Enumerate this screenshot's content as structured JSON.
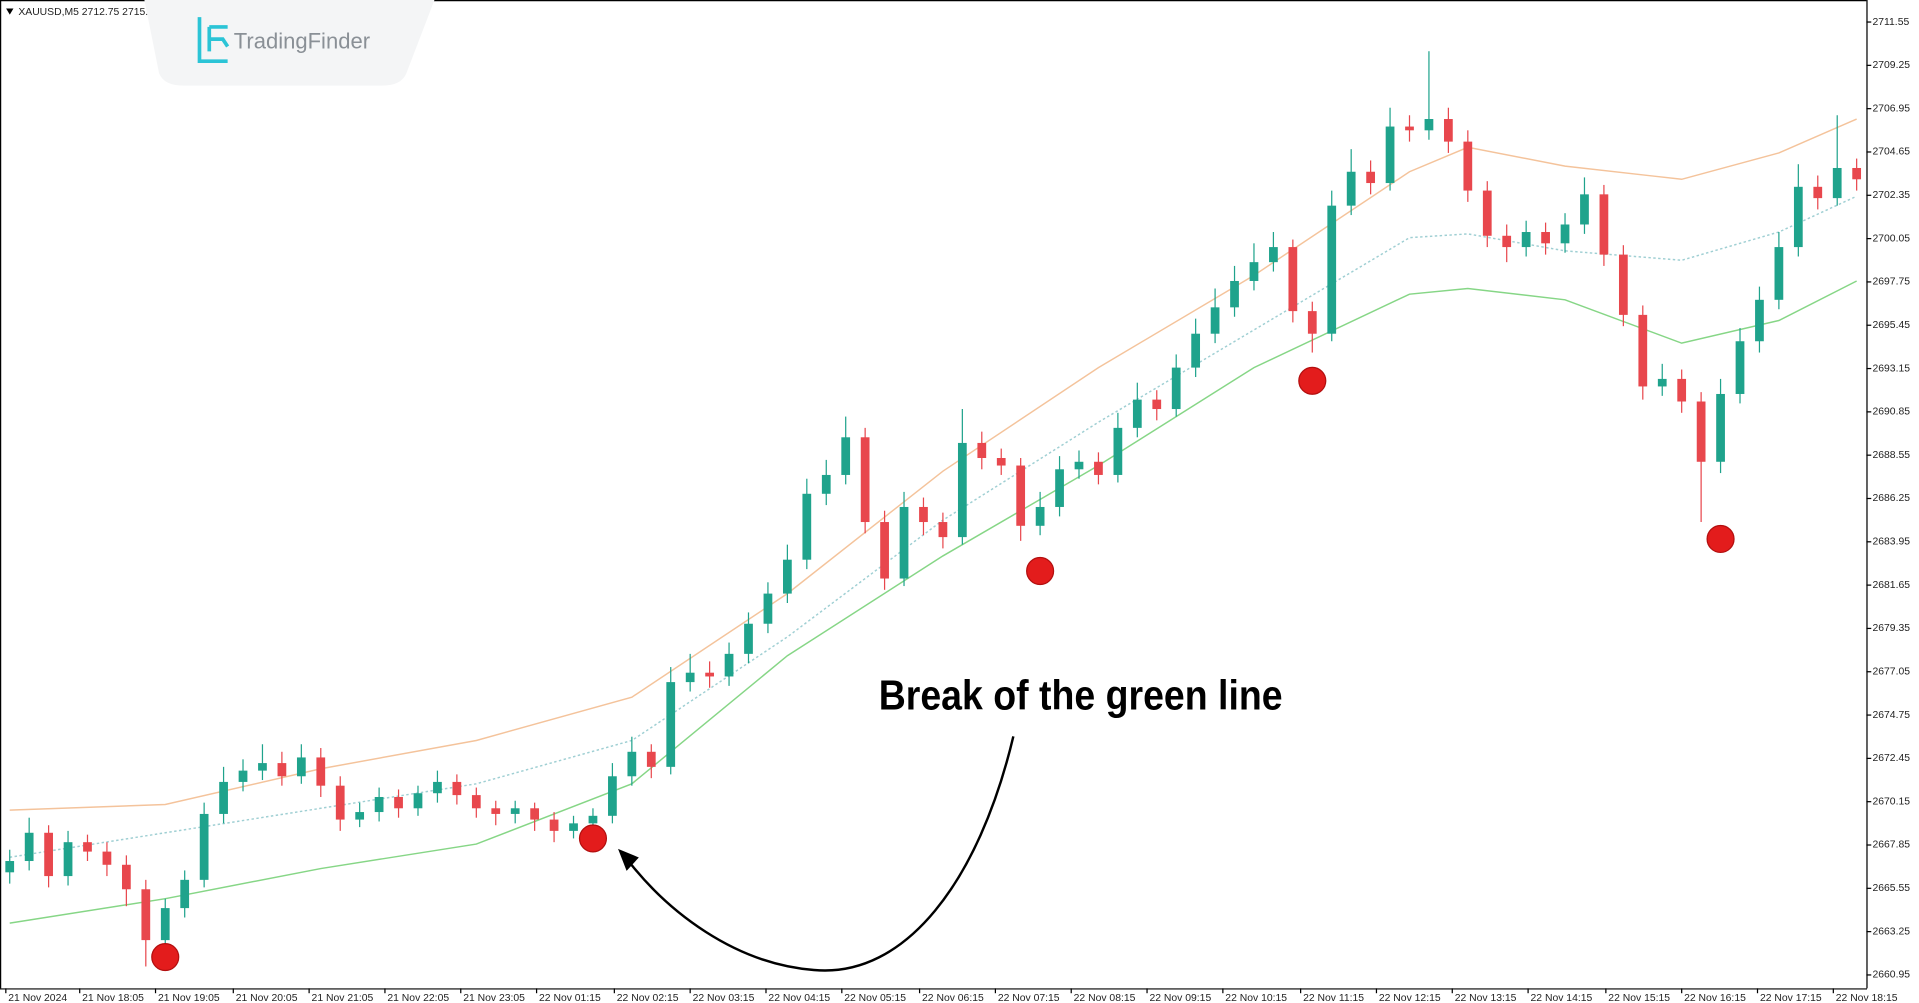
{
  "header": {
    "symbol_quote": "XAUUSD,M5  2712.75  2715."
  },
  "logo": "TradingFinder",
  "chart_data": {
    "type": "candlestick",
    "annotation": "Break of the green line",
    "up_color": "#1fa38c",
    "down_color": "#e8474d",
    "open": [
      2666.4,
      2667.0,
      2668.5,
      2666.2,
      2668.0,
      2667.5,
      2666.8,
      2665.5,
      2662.8,
      2664.5,
      2666.0,
      2669.5,
      2671.2,
      2671.8,
      2672.2,
      2671.5,
      2672.5,
      2671.0,
      2669.2,
      2669.6,
      2670.4,
      2669.8,
      2670.6,
      2671.2,
      2670.5,
      2669.8,
      2669.5,
      2669.8,
      2669.2,
      2668.6,
      2669.0,
      2669.4,
      2671.5,
      2672.8,
      2672.0,
      2676.5,
      2677.0,
      2676.8,
      2678.0,
      2679.6,
      2681.2,
      2683.0,
      2686.5,
      2687.5,
      2689.5,
      2685.0,
      2682.0,
      2685.8,
      2685.0,
      2684.2,
      2689.2,
      2688.4,
      2688.0,
      2684.8,
      2685.8,
      2687.8,
      2688.2,
      2687.5,
      2690.0,
      2691.5,
      2691.0,
      2693.2,
      2695.0,
      2696.4,
      2697.8,
      2698.8,
      2699.6,
      2696.2,
      2695.0,
      2701.8,
      2703.6,
      2703.0,
      2706.0,
      2705.8,
      2706.4,
      2705.2,
      2702.6,
      2700.2,
      2699.6,
      2700.4,
      2699.8,
      2700.8,
      2702.4,
      2699.2,
      2696.0,
      2692.2,
      2692.6,
      2691.4,
      2688.2,
      2691.8,
      2694.6,
      2696.8,
      2699.6,
      2702.8,
      2702.2,
      2703.8
    ],
    "high": [
      2667.6,
      2669.3,
      2668.9,
      2668.6,
      2668.4,
      2668.0,
      2667.3,
      2666.0,
      2665.0,
      2666.5,
      2670.1,
      2672.0,
      2672.4,
      2673.2,
      2672.8,
      2673.2,
      2673.0,
      2671.5,
      2670.1,
      2670.9,
      2670.8,
      2671.0,
      2671.8,
      2671.6,
      2670.9,
      2670.2,
      2670.2,
      2670.1,
      2669.6,
      2669.4,
      2669.8,
      2672.2,
      2673.6,
      2673.2,
      2677.3,
      2678.0,
      2677.6,
      2678.6,
      2680.2,
      2681.8,
      2683.8,
      2687.3,
      2688.3,
      2690.6,
      2690.0,
      2685.6,
      2686.6,
      2686.3,
      2685.5,
      2691.0,
      2689.8,
      2688.9,
      2688.4,
      2686.6,
      2688.5,
      2688.8,
      2688.7,
      2690.8,
      2692.4,
      2692.0,
      2693.9,
      2695.8,
      2697.4,
      2698.6,
      2699.8,
      2700.4,
      2700.0,
      2696.7,
      2702.6,
      2704.8,
      2704.2,
      2707.0,
      2706.6,
      2710.0,
      2707.0,
      2705.8,
      2703.1,
      2700.8,
      2701.0,
      2700.9,
      2701.4,
      2703.3,
      2702.9,
      2699.7,
      2696.5,
      2693.4,
      2693.1,
      2691.9,
      2692.6,
      2695.3,
      2697.5,
      2700.4,
      2704.0,
      2703.4,
      2706.6,
      2704.3
    ],
    "low": [
      2665.8,
      2666.5,
      2665.6,
      2665.7,
      2667.0,
      2666.2,
      2664.6,
      2661.4,
      2662.3,
      2664.0,
      2665.6,
      2669.0,
      2670.7,
      2671.3,
      2671.0,
      2671.1,
      2670.4,
      2668.6,
      2668.8,
      2669.1,
      2669.3,
      2669.4,
      2670.1,
      2670.0,
      2669.3,
      2668.9,
      2669.0,
      2668.6,
      2668.0,
      2668.2,
      2668.6,
      2669.0,
      2671.0,
      2671.4,
      2671.6,
      2676.0,
      2676.2,
      2676.3,
      2677.5,
      2679.1,
      2680.7,
      2682.5,
      2685.9,
      2687.0,
      2684.4,
      2681.4,
      2681.6,
      2684.3,
      2683.6,
      2683.8,
      2687.8,
      2687.5,
      2684.0,
      2684.3,
      2685.3,
      2687.3,
      2687.0,
      2687.1,
      2689.5,
      2690.4,
      2690.6,
      2692.7,
      2694.5,
      2695.9,
      2697.3,
      2698.3,
      2695.6,
      2694.0,
      2694.6,
      2701.3,
      2702.4,
      2702.6,
      2705.2,
      2705.3,
      2704.6,
      2702.0,
      2699.6,
      2698.8,
      2699.1,
      2699.2,
      2699.3,
      2700.3,
      2698.6,
      2695.4,
      2691.5,
      2691.7,
      2690.8,
      2685.0,
      2687.6,
      2691.3,
      2694.0,
      2696.3,
      2699.1,
      2701.6,
      2701.8,
      2702.6
    ],
    "close": [
      2667.0,
      2668.5,
      2666.2,
      2668.0,
      2667.5,
      2666.8,
      2665.5,
      2662.8,
      2664.5,
      2666.0,
      2669.5,
      2671.2,
      2671.8,
      2672.2,
      2671.5,
      2672.5,
      2671.0,
      2669.2,
      2669.6,
      2670.4,
      2669.8,
      2670.6,
      2671.2,
      2670.5,
      2669.8,
      2669.5,
      2669.8,
      2669.2,
      2668.6,
      2669.0,
      2669.4,
      2671.5,
      2672.8,
      2672.0,
      2676.5,
      2677.0,
      2676.8,
      2678.0,
      2679.6,
      2681.2,
      2683.0,
      2686.5,
      2687.5,
      2689.5,
      2685.0,
      2682.0,
      2685.8,
      2685.0,
      2684.2,
      2689.2,
      2688.4,
      2688.0,
      2684.8,
      2685.8,
      2687.8,
      2688.2,
      2687.5,
      2690.0,
      2691.5,
      2691.0,
      2693.2,
      2695.0,
      2696.4,
      2697.8,
      2698.8,
      2699.6,
      2696.2,
      2695.0,
      2701.8,
      2703.6,
      2703.0,
      2706.0,
      2705.8,
      2706.4,
      2705.2,
      2702.6,
      2700.2,
      2699.6,
      2700.4,
      2699.8,
      2700.8,
      2702.4,
      2699.2,
      2696.0,
      2692.2,
      2692.6,
      2691.4,
      2688.2,
      2691.8,
      2694.6,
      2696.8,
      2699.6,
      2702.8,
      2702.2,
      2703.8,
      2703.2
    ],
    "xlim": [
      -0.5,
      95.5
    ],
    "xticks": [
      {
        "value": -0.2,
        "label": "21 Nov 2024"
      },
      {
        "value": 3.6,
        "label": "21 Nov 18:05"
      },
      {
        "value": 7.5,
        "label": "21 Nov 19:05"
      },
      {
        "value": 11.5,
        "label": "21 Nov 20:05"
      },
      {
        "value": 15.4,
        "label": "21 Nov 21:05"
      },
      {
        "value": 19.3,
        "label": "21 Nov 22:05"
      },
      {
        "value": 23.2,
        "label": "21 Nov 23:05"
      },
      {
        "value": 27.1,
        "label": "22 Nov 01:15"
      },
      {
        "value": 31.1,
        "label": "22 Nov 02:15"
      },
      {
        "value": 35.0,
        "label": "22 Nov 03:15"
      },
      {
        "value": 38.9,
        "label": "22 Nov 04:15"
      },
      {
        "value": 42.8,
        "label": "22 Nov 05:15"
      },
      {
        "value": 46.8,
        "label": "22 Nov 06:15"
      },
      {
        "value": 50.7,
        "label": "22 Nov 07:15"
      },
      {
        "value": 54.6,
        "label": "22 Nov 08:15"
      },
      {
        "value": 58.5,
        "label": "22 Nov 09:15"
      },
      {
        "value": 62.4,
        "label": "22 Nov 10:15"
      },
      {
        "value": 66.4,
        "label": "22 Nov 11:15"
      },
      {
        "value": 70.3,
        "label": "22 Nov 12:15"
      },
      {
        "value": 74.2,
        "label": "22 Nov 13:15"
      },
      {
        "value": 78.1,
        "label": "22 Nov 14:15"
      },
      {
        "value": 82.1,
        "label": "22 Nov 15:15"
      },
      {
        "value": 86.0,
        "label": "22 Nov 16:15"
      },
      {
        "value": 89.9,
        "label": "22 Nov 17:15"
      },
      {
        "value": 93.8,
        "label": "22 Nov 18:15"
      }
    ],
    "ylim": [
      2660.24,
      2712.72
    ],
    "yticks": [
      2711.55,
      2709.25,
      2706.95,
      2704.65,
      2702.35,
      2700.05,
      2697.75,
      2695.45,
      2693.15,
      2690.85,
      2688.55,
      2686.25,
      2683.95,
      2681.65,
      2679.35,
      2677.05,
      2674.75,
      2672.45,
      2670.15,
      2667.85,
      2665.55,
      2663.25,
      2660.95
    ],
    "bands": [
      {
        "color": "#f4c39b",
        "dash": "none",
        "x": [
          0,
          8,
          16,
          24,
          32,
          40,
          48,
          56,
          64,
          72,
          75,
          80,
          86,
          91,
          95
        ],
        "values": [
          2669.7,
          2670.0,
          2671.9,
          2673.4,
          2675.7,
          2681.2,
          2687.7,
          2693.2,
          2698.1,
          2703.6,
          2704.9,
          2703.9,
          2703.2,
          2704.6,
          2706.4
        ]
      },
      {
        "color": "#9fcfd3",
        "dash": "2 2",
        "x": [
          0,
          8,
          16,
          24,
          32,
          40,
          48,
          56,
          64,
          72,
          75,
          80,
          86,
          91,
          95
        ],
        "values": [
          2667.2,
          2668.5,
          2669.8,
          2671.1,
          2673.4,
          2678.9,
          2685.1,
          2690.3,
          2695.2,
          2700.1,
          2700.3,
          2699.4,
          2698.9,
          2700.4,
          2702.3
        ]
      },
      {
        "color": "#86d686",
        "dash": "none",
        "x": [
          0,
          8,
          16,
          24,
          32,
          40,
          48,
          56,
          64,
          72,
          75,
          80,
          86,
          91,
          95
        ],
        "values": [
          2663.7,
          2665.0,
          2666.6,
          2667.9,
          2671.1,
          2677.9,
          2683.2,
          2688.0,
          2693.2,
          2697.1,
          2697.4,
          2696.8,
          2694.5,
          2695.7,
          2697.8
        ]
      }
    ],
    "signals": {
      "color": "#e31c1c",
      "x": [
        8,
        30,
        53,
        67,
        88
      ],
      "values": [
        2661.9,
        2668.2,
        2682.4,
        2692.5,
        2684.1
      ]
    }
  }
}
